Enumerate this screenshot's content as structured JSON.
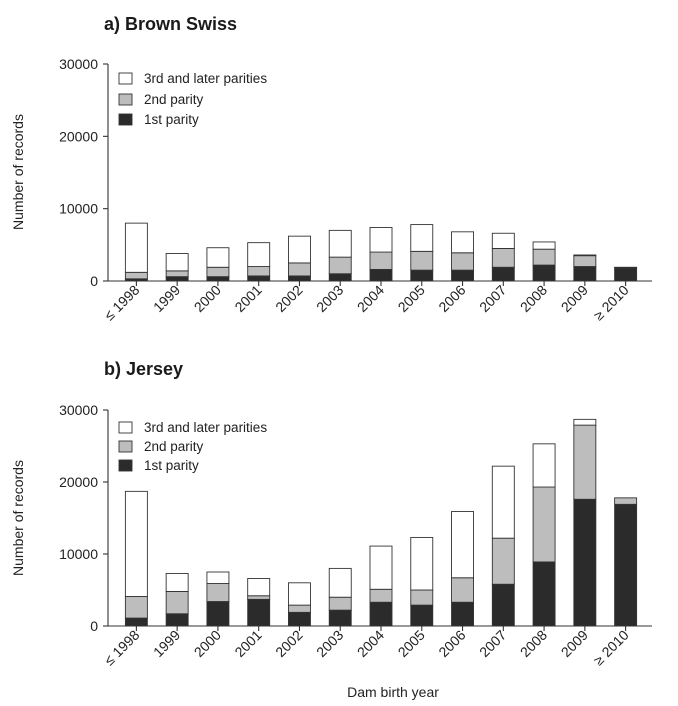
{
  "chart_data": [
    {
      "type": "bar",
      "stacked": true,
      "title": "a) Brown Swiss",
      "xlabel": "",
      "ylabel": "Number of records",
      "ylim": [
        0,
        30000
      ],
      "yticks": [
        0,
        10000,
        20000,
        30000
      ],
      "grid": false,
      "legend_position": "top-left",
      "categories": [
        "≤ 1998",
        "1999",
        "2000",
        "2001",
        "2002",
        "2003",
        "2004",
        "2005",
        "2006",
        "2007",
        "2008",
        "2009",
        "≥ 2010"
      ],
      "series": [
        {
          "name": "1st parity",
          "color": "#2b2b2b",
          "values": [
            300,
            600,
            600,
            700,
            700,
            1000,
            1600,
            1500,
            1500,
            1900,
            2200,
            2000,
            1800
          ]
        },
        {
          "name": "2nd parity",
          "color": "#bdbdbd",
          "values": [
            900,
            800,
            1300,
            1300,
            1800,
            2300,
            2400,
            2600,
            2400,
            2600,
            2200,
            1500,
            100
          ]
        },
        {
          "name": "3rd and later parities",
          "color": "#ffffff",
          "values": [
            6800,
            2400,
            2700,
            3300,
            3700,
            3700,
            3400,
            3700,
            2900,
            2100,
            1000,
            100,
            0
          ]
        }
      ]
    },
    {
      "type": "bar",
      "stacked": true,
      "title": "b) Jersey",
      "xlabel": "Dam birth year",
      "ylabel": "Number of records",
      "ylim": [
        0,
        30000
      ],
      "yticks": [
        0,
        10000,
        20000,
        30000
      ],
      "grid": false,
      "legend_position": "top-left",
      "categories": [
        "≤ 1998",
        "1999",
        "2000",
        "2001",
        "2002",
        "2003",
        "2004",
        "2005",
        "2006",
        "2007",
        "2008",
        "2009",
        "≥ 2010"
      ],
      "series": [
        {
          "name": "1st parity",
          "color": "#2b2b2b",
          "values": [
            1100,
            1700,
            3400,
            3700,
            1900,
            2200,
            3300,
            2900,
            3300,
            5800,
            8900,
            17600,
            16900
          ]
        },
        {
          "name": "2nd parity",
          "color": "#bdbdbd",
          "values": [
            3000,
            3100,
            2500,
            500,
            1000,
            1800,
            1800,
            2100,
            3400,
            6400,
            10400,
            10300,
            900
          ]
        },
        {
          "name": "3rd and later parities",
          "color": "#ffffff",
          "values": [
            14600,
            2500,
            1600,
            2400,
            3100,
            4000,
            6000,
            7300,
            9200,
            10000,
            6000,
            800,
            0
          ]
        }
      ]
    }
  ]
}
